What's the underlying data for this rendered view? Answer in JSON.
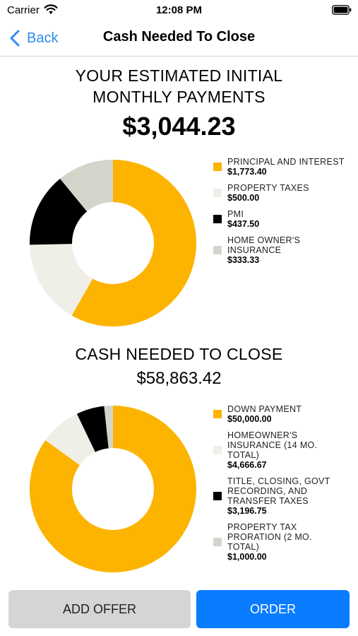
{
  "status_bar": {
    "carrier": "Carrier",
    "time": "12:08 PM"
  },
  "nav": {
    "back_label": "Back",
    "title": "Cash Needed To Close"
  },
  "chart_data": [
    {
      "type": "pie",
      "title": "YOUR ESTIMATED INITIAL MONTHLY PAYMENTS",
      "title_lines": [
        "YOUR ESTIMATED INITIAL",
        "MONTHLY PAYMENTS"
      ],
      "total": "$3,044.23",
      "legend_position": "right",
      "slices": [
        {
          "label_lines": [
            "PRINCIPAL AND INTEREST"
          ],
          "value": 1773.4,
          "display": "$1,773.40",
          "color": "#fcb400"
        },
        {
          "label_lines": [
            "PROPERTY TAXES"
          ],
          "value": 500.0,
          "display": "$500.00",
          "color": "#efefe8"
        },
        {
          "label_lines": [
            "PMI"
          ],
          "value": 437.5,
          "display": "$437.50",
          "color": "#000000"
        },
        {
          "label_lines": [
            "HOME OWNER'S",
            "INSURANCE"
          ],
          "value": 333.33,
          "display": "$333.33",
          "color": "#d5d4cb"
        }
      ]
    },
    {
      "type": "pie",
      "title": "CASH NEEDED TO CLOSE",
      "title_lines": [
        "CASH NEEDED TO CLOSE"
      ],
      "total": "$58,863.42",
      "legend_position": "right",
      "slices": [
        {
          "label_lines": [
            "DOWN PAYMENT"
          ],
          "value": 50000.0,
          "display": "$50,000.00",
          "color": "#fcb400"
        },
        {
          "label_lines": [
            "HOMEOWNER'S",
            "INSURANCE (14 MO.",
            "TOTAL)"
          ],
          "value": 4666.67,
          "display": "$4,666.67",
          "color": "#efefe8"
        },
        {
          "label_lines": [
            "TITLE, CLOSING, GOVT",
            "RECORDING, AND",
            "TRANSFER TAXES"
          ],
          "value": 3196.75,
          "display": "$3,196.75",
          "color": "#000000"
        },
        {
          "label_lines": [
            "PROPERTY TAX",
            "PRORATION (2 MO.",
            "TOTAL)"
          ],
          "value": 1000.0,
          "display": "$1,000.00",
          "color": "#d5d4cb"
        }
      ]
    }
  ],
  "buttons": {
    "add_offer": "ADD OFFER",
    "order": "ORDER"
  },
  "icons": {
    "wifi": "wifi-icon",
    "battery": "battery-icon",
    "back": "chevron-left-icon"
  }
}
